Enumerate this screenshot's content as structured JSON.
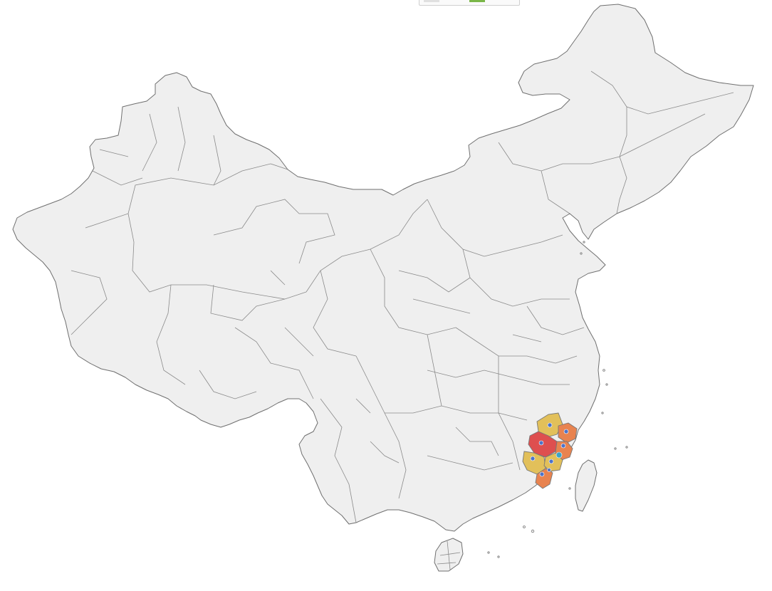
{
  "legend": {
    "items": [
      {
        "label": "",
        "color": "#e0e0e0"
      },
      {
        "label": "",
        "color": "#7ab648"
      }
    ]
  },
  "map": {
    "base_fill": "#efefef",
    "border_color": "#6f6f6f",
    "highlight_colors": {
      "yellow": "#e2c05a",
      "orange": "#e8834f",
      "red": "#de4f4f",
      "marker": "#4d73c9",
      "marker_alt": "#3aa5c8"
    }
  }
}
